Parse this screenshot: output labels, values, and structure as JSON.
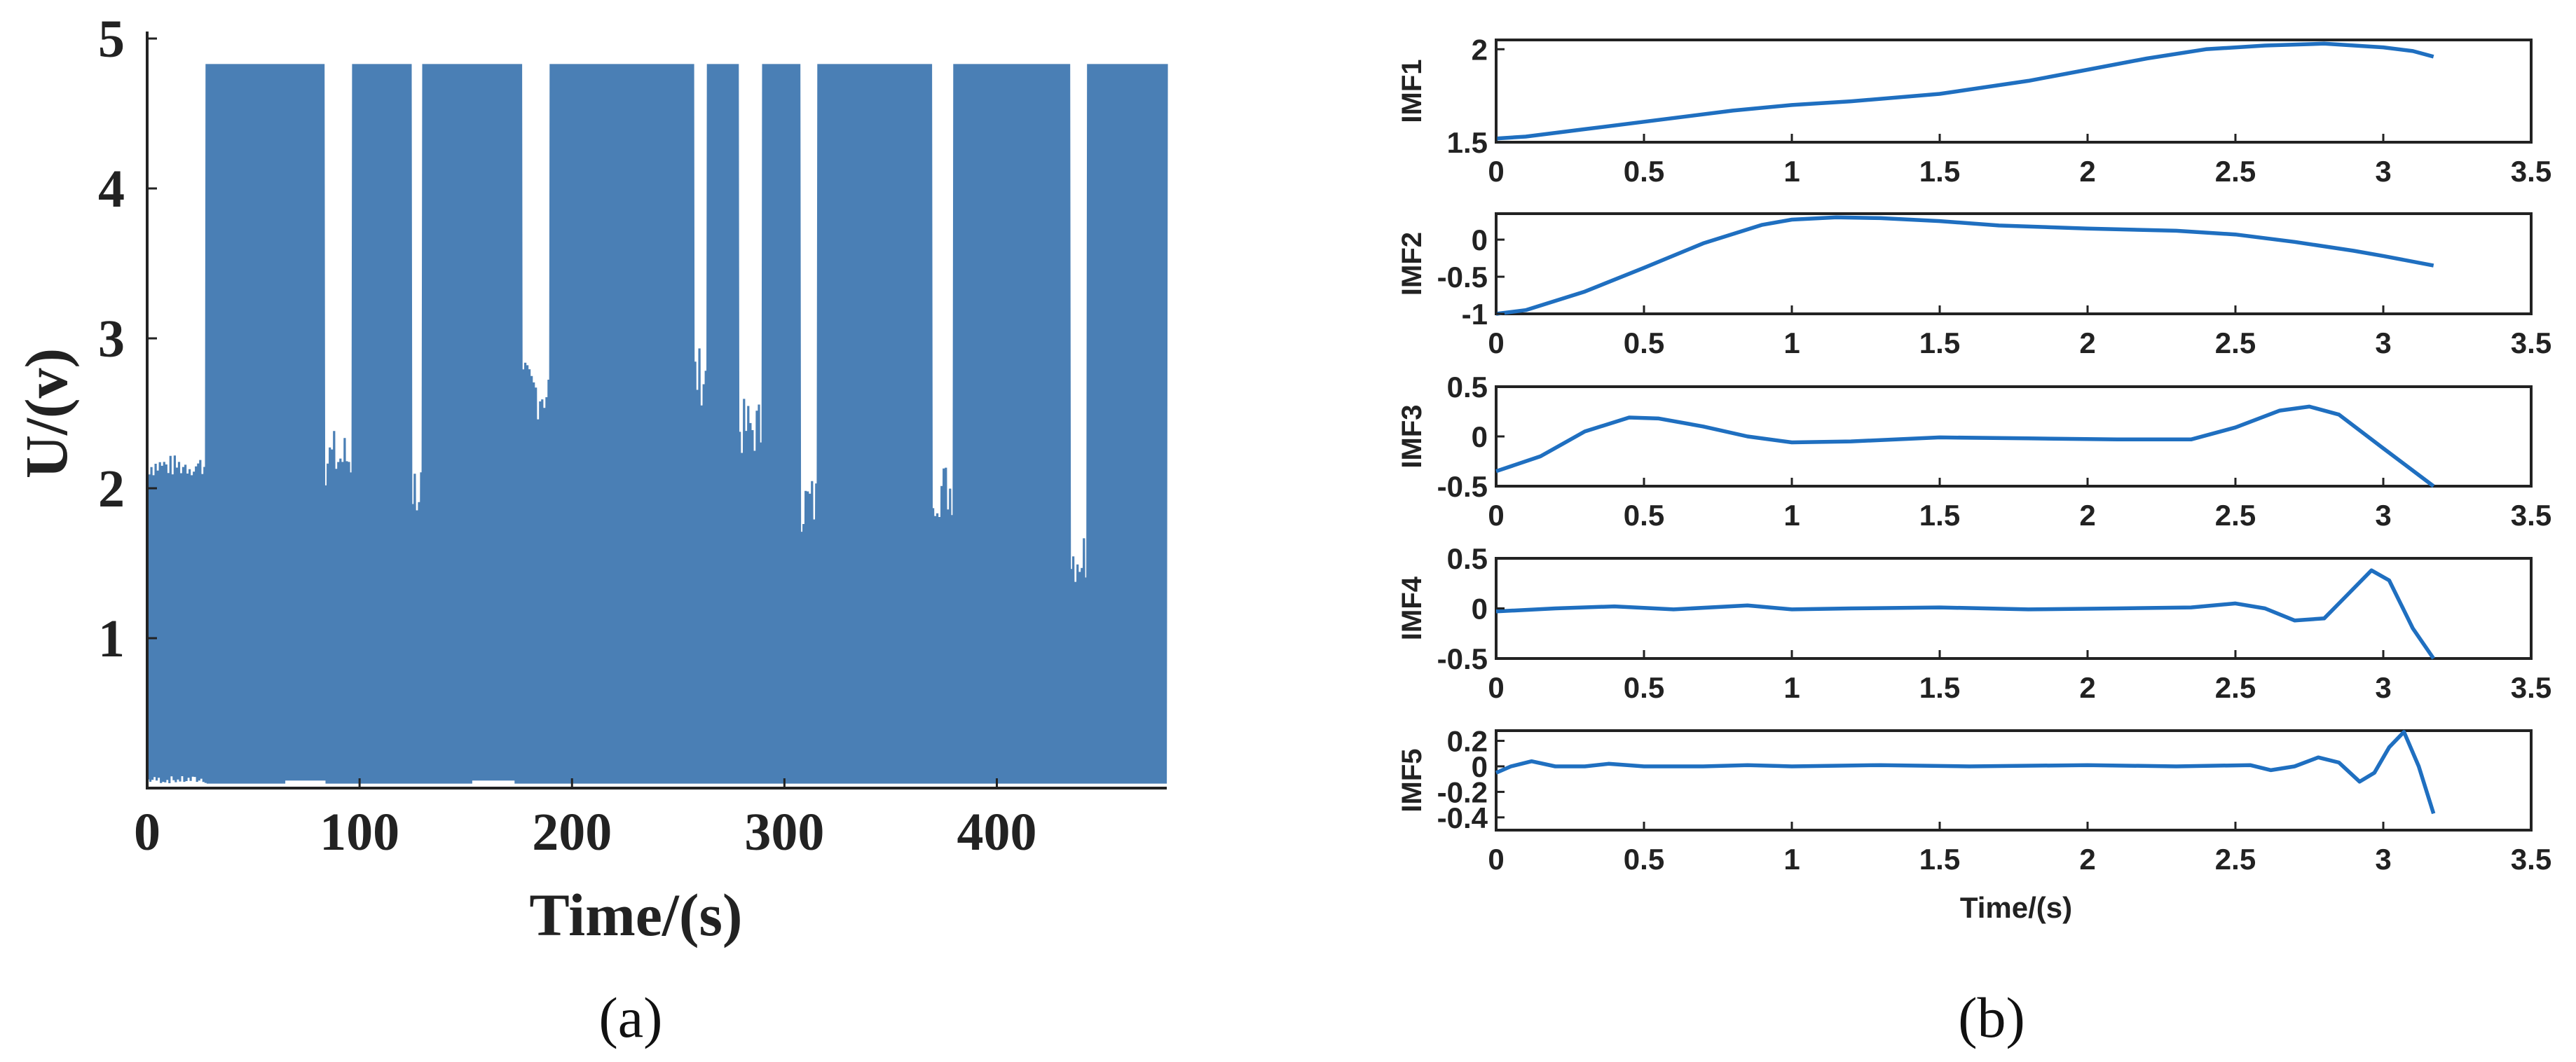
{
  "panel_labels": [
    "(a)",
    "(b)"
  ],
  "chart_data": [
    {
      "type": "line",
      "panel": "(a)",
      "xlabel": "Time/(s)",
      "ylabel": "U/(v)",
      "xlim": [
        0,
        480
      ],
      "ylim": [
        0,
        5
      ],
      "xticks": [
        0,
        100,
        200,
        300,
        400
      ],
      "yticks": [
        1,
        2,
        3,
        4,
        5
      ],
      "grid": false,
      "line_color": "#4a7fb5",
      "signal": {
        "description": "switching voltage signal",
        "high_level": 4.83,
        "low_level": 0.03,
        "baseline_before_switching": 2.15,
        "switching_start": 28,
        "continuous_high_intervals": [
          [
            65,
            84
          ],
          [
            153,
            173
          ]
        ],
        "gaps_at_mid_level": [
          [
            84,
            97
          ],
          [
            125,
            130
          ],
          [
            177,
            190
          ],
          [
            258,
            264
          ],
          [
            279,
            290
          ],
          [
            308,
            316
          ],
          [
            370,
            380
          ],
          [
            435,
            443
          ]
        ],
        "mid_level_values": [
          2.2,
          2.0,
          2.65,
          2.75,
          2.4,
          1.9,
          2.0,
          1.55
        ]
      }
    },
    {
      "type": "line",
      "panel": "(b)",
      "xlabel": "Time/(s)",
      "xlim": [
        0,
        3.5
      ],
      "xticks": [
        "0",
        "0.5",
        "1",
        "1.5",
        "2",
        "2.5",
        "3",
        "3.5"
      ],
      "line_color": "#1f6fc0",
      "grid": false,
      "series": [
        {
          "name": "IMF1",
          "ylim": [
            1.5,
            2.05
          ],
          "yticks": [
            "1.5",
            "2"
          ],
          "x": [
            0,
            0.1,
            0.3,
            0.5,
            0.8,
            1.0,
            1.2,
            1.5,
            1.8,
            2.0,
            2.2,
            2.4,
            2.6,
            2.8,
            3.0,
            3.1,
            3.17
          ],
          "y": [
            1.52,
            1.53,
            1.57,
            1.61,
            1.67,
            1.7,
            1.72,
            1.76,
            1.83,
            1.89,
            1.95,
            2.0,
            2.02,
            2.03,
            2.01,
            1.99,
            1.96
          ]
        },
        {
          "name": "IMF2",
          "ylim": [
            -1,
            0.35
          ],
          "yticks": [
            "-1",
            "-0.5",
            "0"
          ],
          "x": [
            0,
            0.1,
            0.3,
            0.5,
            0.7,
            0.9,
            1.0,
            1.15,
            1.3,
            1.5,
            1.7,
            2.0,
            2.3,
            2.5,
            2.7,
            2.9,
            3.0,
            3.17
          ],
          "y": [
            -1.0,
            -0.95,
            -0.7,
            -0.38,
            -0.05,
            0.2,
            0.27,
            0.3,
            0.29,
            0.25,
            0.19,
            0.15,
            0.12,
            0.07,
            -0.03,
            -0.15,
            -0.22,
            -0.35
          ]
        },
        {
          "name": "IMF3",
          "ylim": [
            -0.5,
            0.5
          ],
          "yticks": [
            "-0.5",
            "0",
            "0.5"
          ],
          "x": [
            0,
            0.15,
            0.3,
            0.45,
            0.55,
            0.7,
            0.85,
            1.0,
            1.2,
            1.5,
            1.8,
            2.1,
            2.35,
            2.5,
            2.65,
            2.75,
            2.85,
            3.0,
            3.17
          ],
          "y": [
            -0.35,
            -0.2,
            0.05,
            0.19,
            0.18,
            0.1,
            0.0,
            -0.06,
            -0.05,
            -0.01,
            -0.02,
            -0.03,
            -0.03,
            0.09,
            0.26,
            0.3,
            0.22,
            -0.12,
            -0.5
          ]
        },
        {
          "name": "IMF4",
          "ylim": [
            -0.5,
            0.5
          ],
          "yticks": [
            "-0.5",
            "0",
            "0.5"
          ],
          "x": [
            0,
            0.2,
            0.4,
            0.6,
            0.85,
            1.0,
            1.2,
            1.5,
            1.8,
            2.1,
            2.35,
            2.5,
            2.6,
            2.7,
            2.8,
            2.88,
            2.96,
            3.02,
            3.1,
            3.17
          ],
          "y": [
            -0.03,
            0.0,
            0.02,
            -0.01,
            0.03,
            -0.01,
            0.0,
            0.01,
            -0.01,
            0.0,
            0.01,
            0.05,
            0.0,
            -0.12,
            -0.1,
            0.14,
            0.38,
            0.28,
            -0.2,
            -0.5
          ]
        },
        {
          "name": "IMF5",
          "ylim": [
            -0.5,
            0.28
          ],
          "yticks": [
            "-0.4",
            "-0.2",
            "0",
            "0.2"
          ],
          "x": [
            0,
            0.05,
            0.12,
            0.2,
            0.3,
            0.38,
            0.5,
            0.7,
            0.85,
            1.0,
            1.3,
            1.6,
            2.0,
            2.3,
            2.55,
            2.62,
            2.7,
            2.78,
            2.85,
            2.92,
            2.97,
            3.02,
            3.07,
            3.12,
            3.17
          ],
          "y": [
            -0.05,
            0.0,
            0.04,
            0.0,
            0.0,
            0.02,
            0.0,
            0.0,
            0.01,
            0.0,
            0.01,
            0.0,
            0.01,
            0.0,
            0.01,
            -0.03,
            0.0,
            0.07,
            0.03,
            -0.12,
            -0.05,
            0.15,
            0.27,
            0.0,
            -0.37
          ]
        }
      ]
    }
  ]
}
